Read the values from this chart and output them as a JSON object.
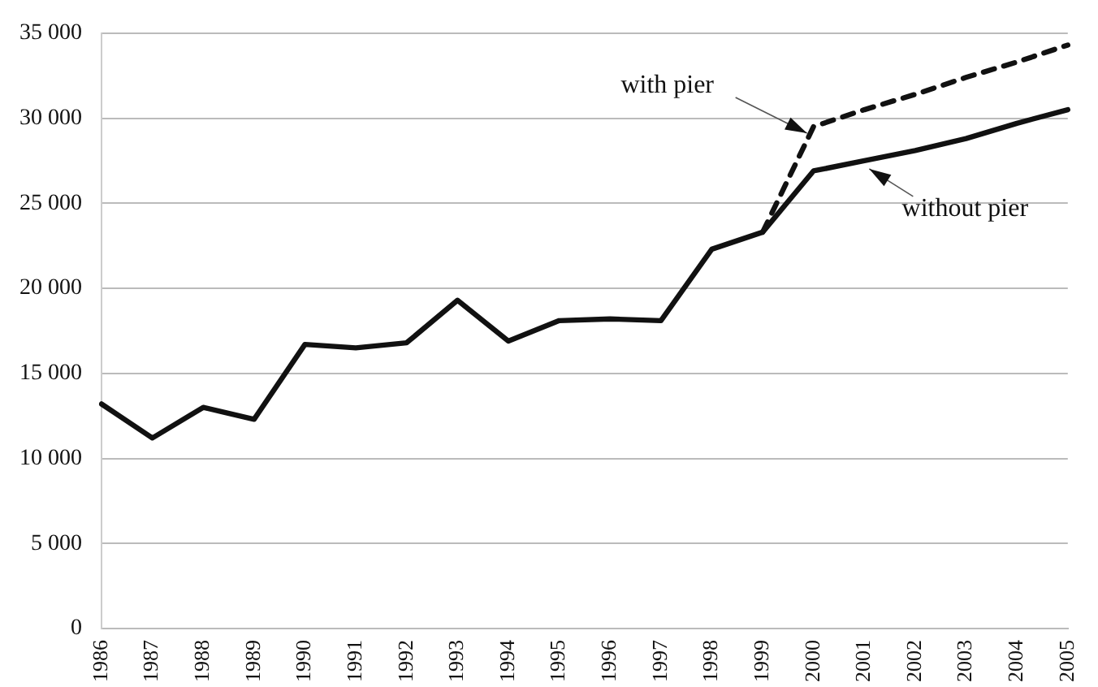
{
  "chart_data": {
    "type": "line",
    "categories": [
      "1986",
      "1987",
      "1988",
      "1989",
      "1990",
      "1991",
      "1992",
      "1993",
      "1994",
      "1995",
      "1996",
      "1997",
      "1998",
      "1999",
      "2000",
      "2001",
      "2002",
      "2003",
      "2004",
      "2005"
    ],
    "series": [
      {
        "name": "with pier",
        "color": "#111111",
        "line_style": "dashed",
        "values": [
          null,
          null,
          null,
          null,
          null,
          null,
          null,
          null,
          null,
          null,
          null,
          null,
          null,
          23300,
          29500,
          30500,
          31400,
          32400,
          33300,
          34300
        ]
      },
      {
        "name": "without pier",
        "color": "#111111",
        "line_style": "solid",
        "values": [
          13200,
          11200,
          13000,
          12300,
          16700,
          16500,
          16800,
          19300,
          16900,
          18100,
          18200,
          18100,
          22300,
          23300,
          26900,
          27500,
          28100,
          28800,
          29700,
          30500
        ]
      }
    ],
    "ylim": [
      0,
      35000
    ],
    "yticks": [
      {
        "value": 0,
        "label": "0"
      },
      {
        "value": 5000,
        "label": "5 000"
      },
      {
        "value": 10000,
        "label": "10 000"
      },
      {
        "value": 15000,
        "label": "15 000"
      },
      {
        "value": 20000,
        "label": "20 000"
      },
      {
        "value": 25000,
        "label": "25 000"
      },
      {
        "value": 30000,
        "label": "30 000"
      },
      {
        "value": 35000,
        "label": "35 000"
      }
    ],
    "grid": "y",
    "marker": "none"
  }
}
